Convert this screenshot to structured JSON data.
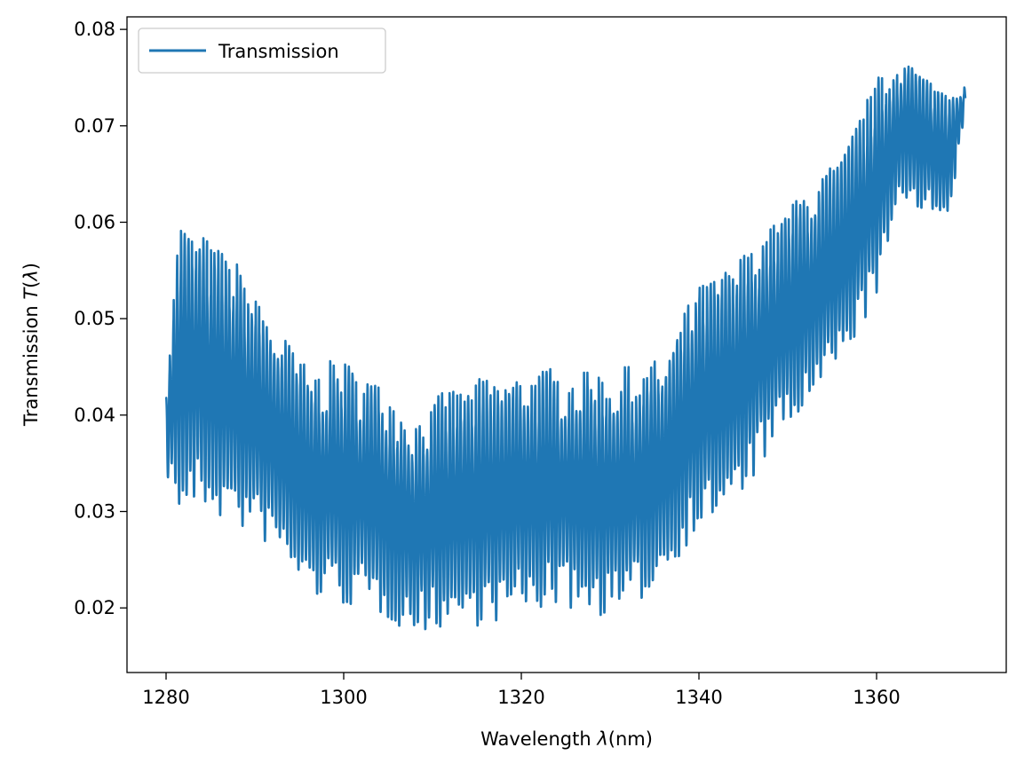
{
  "chart_data": {
    "type": "line",
    "xlabel_parts": [
      "Wavelength ",
      "λ",
      "(nm)"
    ],
    "ylabel_parts": [
      "Transmission ",
      "T",
      "(",
      "λ",
      ")"
    ],
    "xlim": [
      1275.6,
      1374.6
    ],
    "ylim": [
      0.0133,
      0.0813
    ],
    "xticks": [
      1280,
      1300,
      1320,
      1340,
      1360
    ],
    "xtick_labels": [
      "1280",
      "1300",
      "1320",
      "1340",
      "1360"
    ],
    "yticks": [
      0.02,
      0.03,
      0.04,
      0.05,
      0.06,
      0.07,
      0.08
    ],
    "ytick_labels": [
      "0.02",
      "0.03",
      "0.04",
      "0.05",
      "0.06",
      "0.07",
      "0.08"
    ],
    "legend_position": "top-left",
    "series": [
      {
        "name": "Transmission",
        "color": "#1f77b4",
        "x_start": 1280,
        "x_end": 1370,
        "fringe_period_nm": 0.42,
        "envelope_x": [
          1280,
          1281.5,
          1284,
          1288,
          1292,
          1296,
          1300,
          1304,
          1308,
          1312,
          1316,
          1320,
          1324,
          1328,
          1332,
          1336,
          1340,
          1344,
          1348,
          1352,
          1356,
          1360,
          1363,
          1366,
          1368,
          1370
        ],
        "envelope_max": [
          0.044,
          0.061,
          0.059,
          0.056,
          0.05,
          0.045,
          0.046,
          0.044,
          0.04,
          0.043,
          0.044,
          0.045,
          0.045,
          0.045,
          0.045,
          0.046,
          0.054,
          0.056,
          0.06,
          0.064,
          0.067,
          0.075,
          0.078,
          0.075,
          0.075,
          0.074
        ],
        "envelope_min": [
          0.034,
          0.029,
          0.03,
          0.028,
          0.026,
          0.021,
          0.02,
          0.019,
          0.017,
          0.018,
          0.018,
          0.019,
          0.02,
          0.019,
          0.019,
          0.023,
          0.028,
          0.03,
          0.036,
          0.04,
          0.045,
          0.052,
          0.062,
          0.061,
          0.058,
          0.072
        ]
      }
    ]
  }
}
